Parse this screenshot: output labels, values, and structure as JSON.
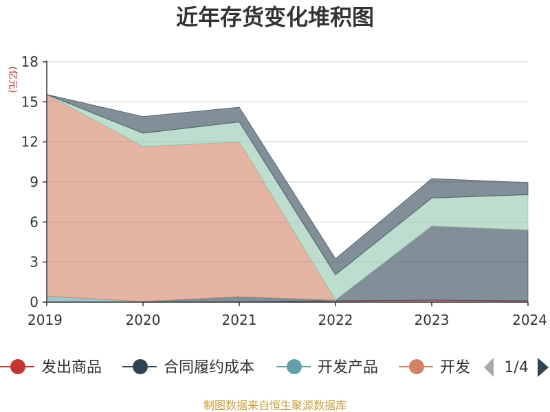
{
  "chart_data": {
    "type": "area",
    "stacked": true,
    "title": "近年存货变化堆积图",
    "ylabel": "(亿元)",
    "xlabel": "",
    "x": [
      "2019",
      "2020",
      "2021",
      "2022",
      "2023",
      "2024"
    ],
    "ylim": [
      0,
      18
    ],
    "yticks": [
      0,
      3,
      6,
      9,
      12,
      15,
      18
    ],
    "grid": true,
    "series": [
      {
        "name": "发出商品",
        "color": "#c23531",
        "values": [
          0.0,
          0.0,
          0.0,
          0.1,
          0.15,
          0.1
        ]
      },
      {
        "name": "合同履约成本",
        "color": "#2f4554",
        "values": [
          0.0,
          0.0,
          0.4,
          0.0,
          5.55,
          5.3
        ]
      },
      {
        "name": "开发产品",
        "color": "#61a0a8",
        "values": [
          0.45,
          0.05,
          0.0,
          0.05,
          0.0,
          0.0
        ]
      },
      {
        "name": "开发成本",
        "color": "#d48265",
        "values": [
          15.1,
          11.6,
          11.6,
          0.0,
          0.0,
          0.0
        ]
      },
      {
        "name": "",
        "color": "#91c7ae",
        "values": [
          0.0,
          1.0,
          1.5,
          1.9,
          2.1,
          2.65
        ]
      },
      {
        "name": "",
        "color": "#2f4554",
        "values": [
          0.0,
          1.25,
          1.1,
          1.2,
          1.45,
          0.9
        ]
      }
    ],
    "legend": {
      "position": "bottom",
      "visible_items": [
        "发出商品",
        "合同履约成本",
        "开发产品",
        "开发"
      ],
      "page": "1/4"
    },
    "source": "制图数据来自恒生聚源数据库"
  }
}
